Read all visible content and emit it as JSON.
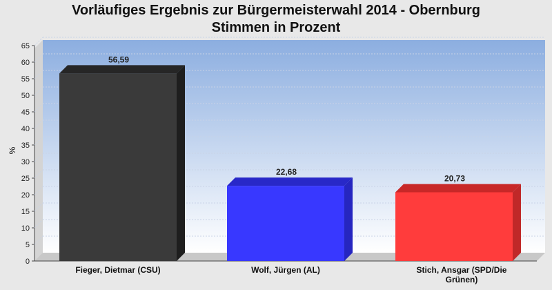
{
  "chart_data": {
    "type": "bar",
    "title": "Vorläufiges Ergebnis zur Bürgermeisterwahl 2014 - Obernburg",
    "subtitle": "Stimmen in Prozent",
    "ylabel": "%",
    "xlabel": "",
    "ylim": [
      0,
      65
    ],
    "yticks": [
      "0",
      "5",
      "10",
      "15",
      "20",
      "25",
      "30",
      "35",
      "40",
      "45",
      "50",
      "55",
      "60",
      "65"
    ],
    "grid": true,
    "categories": [
      "Fieger, Dietmar (CSU)",
      "Wolf, Jürgen (AL)",
      "Stich, Ansgar (SPD/Die Grünen)"
    ],
    "category_lines": [
      [
        "Fieger, Dietmar (CSU)"
      ],
      [
        "Wolf, Jürgen (AL)"
      ],
      [
        "Stich, Ansgar (SPD/Die",
        "Grünen)"
      ]
    ],
    "values": [
      56.59,
      22.68,
      20.73
    ],
    "value_labels": [
      "56,59",
      "22,68",
      "20,73"
    ],
    "colors": {
      "bars": [
        "#3a3a3a",
        "#3838ff",
        "#ff3c3c"
      ],
      "bar_tops": [
        "#262626",
        "#2828c8",
        "#c82828"
      ],
      "bar_sides": [
        "#1e1e1e",
        "#2626c0",
        "#c02828"
      ],
      "plot_top": "#8caee0",
      "plot_bottom": "#ffffff"
    }
  }
}
